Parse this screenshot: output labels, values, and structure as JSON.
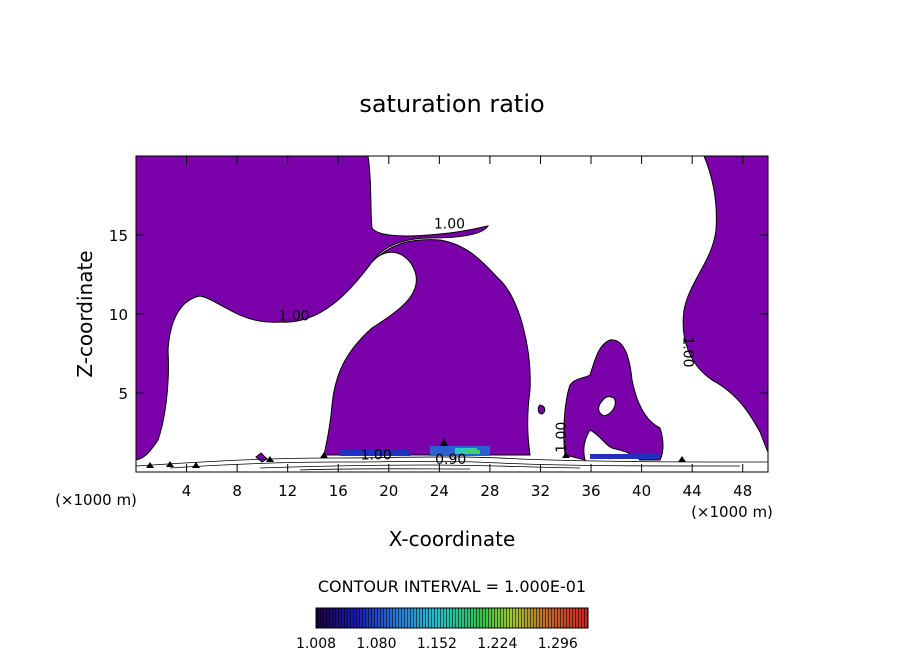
{
  "chart_data": {
    "type": "contour",
    "title": "saturation ratio",
    "xlabel": "X-coordinate",
    "ylabel": "Z-coordinate",
    "x_unit_left": "(×1000 m)",
    "x_unit_right": "(×1000 m)",
    "xlim": [
      0,
      50
    ],
    "ylim": [
      0,
      20
    ],
    "x_ticks": [
      4,
      8,
      12,
      16,
      20,
      24,
      28,
      32,
      36,
      40,
      44,
      48
    ],
    "y_ticks": [
      5,
      10,
      15
    ],
    "fill_color": "#7a00aa",
    "contour_labels": [
      {
        "text": "1.00",
        "x": 24.8,
        "y": 15.4,
        "rotate": 0
      },
      {
        "text": "1.00",
        "x": 12.5,
        "y": 9.6,
        "rotate": 0
      },
      {
        "text": "1.00",
        "x": 43.3,
        "y": 7.6,
        "rotate": 90
      },
      {
        "text": "1.00",
        "x": 34.0,
        "y": 2.2,
        "rotate": -90
      },
      {
        "text": "1.00",
        "x": 19.0,
        "y": 0.8,
        "rotate": 0
      },
      {
        "text": "0.90",
        "x": 24.9,
        "y": 0.5,
        "rotate": 0
      }
    ],
    "contour_interval_label": "CONTOUR INTERVAL = 1.000E-01",
    "colorbar": {
      "ticks": [
        "1.008",
        "1.080",
        "1.152",
        "1.224",
        "1.296"
      ],
      "min": 1.008,
      "max": 1.332
    }
  }
}
